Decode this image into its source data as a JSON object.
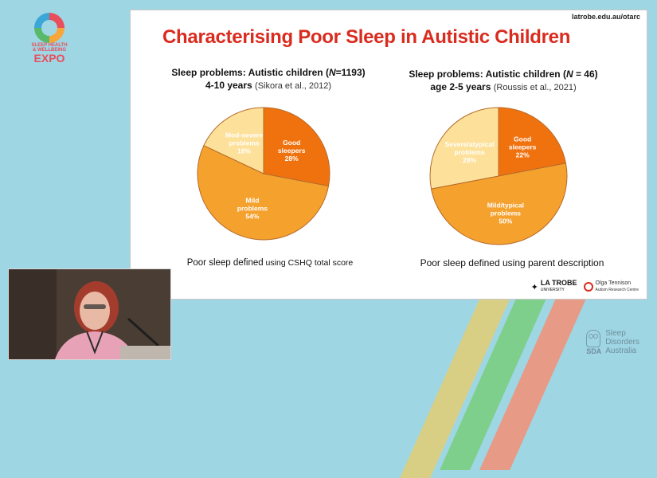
{
  "event_logo": {
    "line1": "SLEEP HEALTH",
    "line2": "& WELLBEING",
    "big": "EXPO"
  },
  "slide": {
    "url": "latrobe.edu.au/otarc",
    "title": "Characterising Poor Sleep in Autistic Children",
    "left": {
      "heading_pre": "Sleep problems: Autistic children (",
      "heading_n": "N",
      "heading_post": "=1193)",
      "heading_line2": "4-10 years",
      "reference": "(Sikora et al., 2012)",
      "caption_pre": "Poor sleep ",
      "caption_em": "defined",
      "caption_post": " using CSHQ total score"
    },
    "right": {
      "heading_pre": "Sleep problems: Autistic children (",
      "heading_n": "N",
      "heading_post": " = 46)",
      "heading_line2": "age 2-5 years",
      "reference": "(Roussis et al., 2021)",
      "caption": "Poor sleep defined using parent description"
    },
    "logos": {
      "latrobe": "LA TROBE",
      "latrobe_sub": "UNIVERSITY",
      "olga": "Olga Tennison",
      "olga_sub": "Autism Research Centre"
    }
  },
  "chart_data": [
    {
      "type": "pie",
      "title": "Sleep problems: Autistic children (N=1193) 4-10 years (Sikora et al., 2012)",
      "slices": [
        {
          "label": "Good sleepers",
          "value": 28,
          "display": "28%",
          "color": "#f0720f"
        },
        {
          "label": "Mild problems",
          "value": 54,
          "display": "54%",
          "color": "#f5a12e"
        },
        {
          "label": "Mod-severe problems",
          "value": 18,
          "display": "18%",
          "color": "#fde19a"
        }
      ]
    },
    {
      "type": "pie",
      "title": "Sleep problems: Autistic children (N = 46) age 2-5 years (Roussis et al., 2021)",
      "slices": [
        {
          "label": "Good sleepers",
          "value": 22,
          "display": "22%",
          "color": "#f0720f"
        },
        {
          "label": "Mild/typical problems",
          "value": 50,
          "display": "50%",
          "color": "#f5a12e"
        },
        {
          "label": "Severe/atypical problems",
          "value": 28,
          "display": "28%",
          "color": "#fde19a"
        }
      ]
    }
  ],
  "sponsor": {
    "line1": "Sleep",
    "line2": "Disorders",
    "line3": "Australia",
    "abbr": "SDA"
  }
}
